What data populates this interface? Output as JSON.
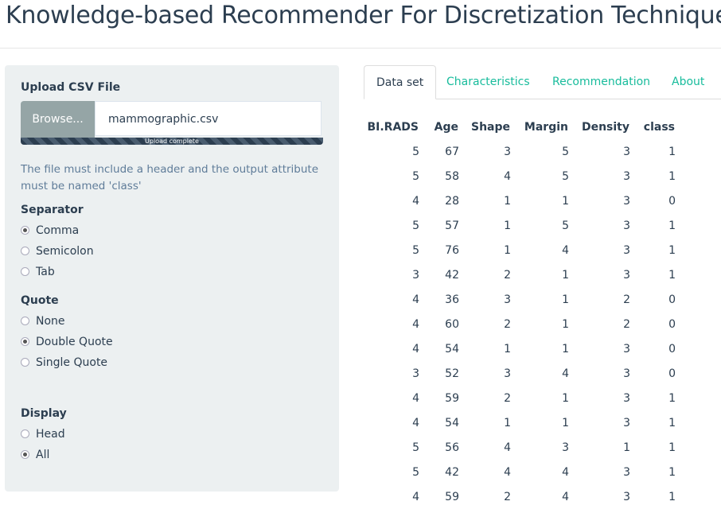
{
  "header": {
    "title": "Knowledge-based Recommender For Discretization Techniques"
  },
  "sidebar": {
    "upload": {
      "label": "Upload CSV File",
      "button": "Browse...",
      "filename": "mammographic.csv",
      "progress": "Upload complete"
    },
    "help": "The file must include a header and the output attribute must be named 'class'",
    "groups": [
      {
        "label": "Separator",
        "options": [
          "Comma",
          "Semicolon",
          "Tab"
        ],
        "selected": 0
      },
      {
        "label": "Quote",
        "options": [
          "None",
          "Double Quote",
          "Single Quote"
        ],
        "selected": 1
      },
      {
        "label": "Display",
        "options": [
          "Head",
          "All"
        ],
        "selected": 1
      }
    ]
  },
  "tabs": {
    "items": [
      "Data set",
      "Characteristics",
      "Recommendation",
      "About"
    ],
    "active": 0
  },
  "table": {
    "columns": [
      "BI.RADS",
      "Age",
      "Shape",
      "Margin",
      "Density",
      "class"
    ],
    "rows": [
      [
        5,
        67,
        3,
        5,
        3,
        1
      ],
      [
        5,
        58,
        4,
        5,
        3,
        1
      ],
      [
        4,
        28,
        1,
        1,
        3,
        0
      ],
      [
        5,
        57,
        1,
        5,
        3,
        1
      ],
      [
        5,
        76,
        1,
        4,
        3,
        1
      ],
      [
        3,
        42,
        2,
        1,
        3,
        1
      ],
      [
        4,
        36,
        3,
        1,
        2,
        0
      ],
      [
        4,
        60,
        2,
        1,
        2,
        0
      ],
      [
        4,
        54,
        1,
        1,
        3,
        0
      ],
      [
        3,
        52,
        3,
        4,
        3,
        0
      ],
      [
        4,
        59,
        2,
        1,
        3,
        1
      ],
      [
        4,
        54,
        1,
        1,
        3,
        1
      ],
      [
        5,
        56,
        4,
        3,
        1,
        1
      ],
      [
        5,
        42,
        4,
        4,
        3,
        1
      ],
      [
        4,
        59,
        2,
        4,
        3,
        1
      ]
    ]
  }
}
